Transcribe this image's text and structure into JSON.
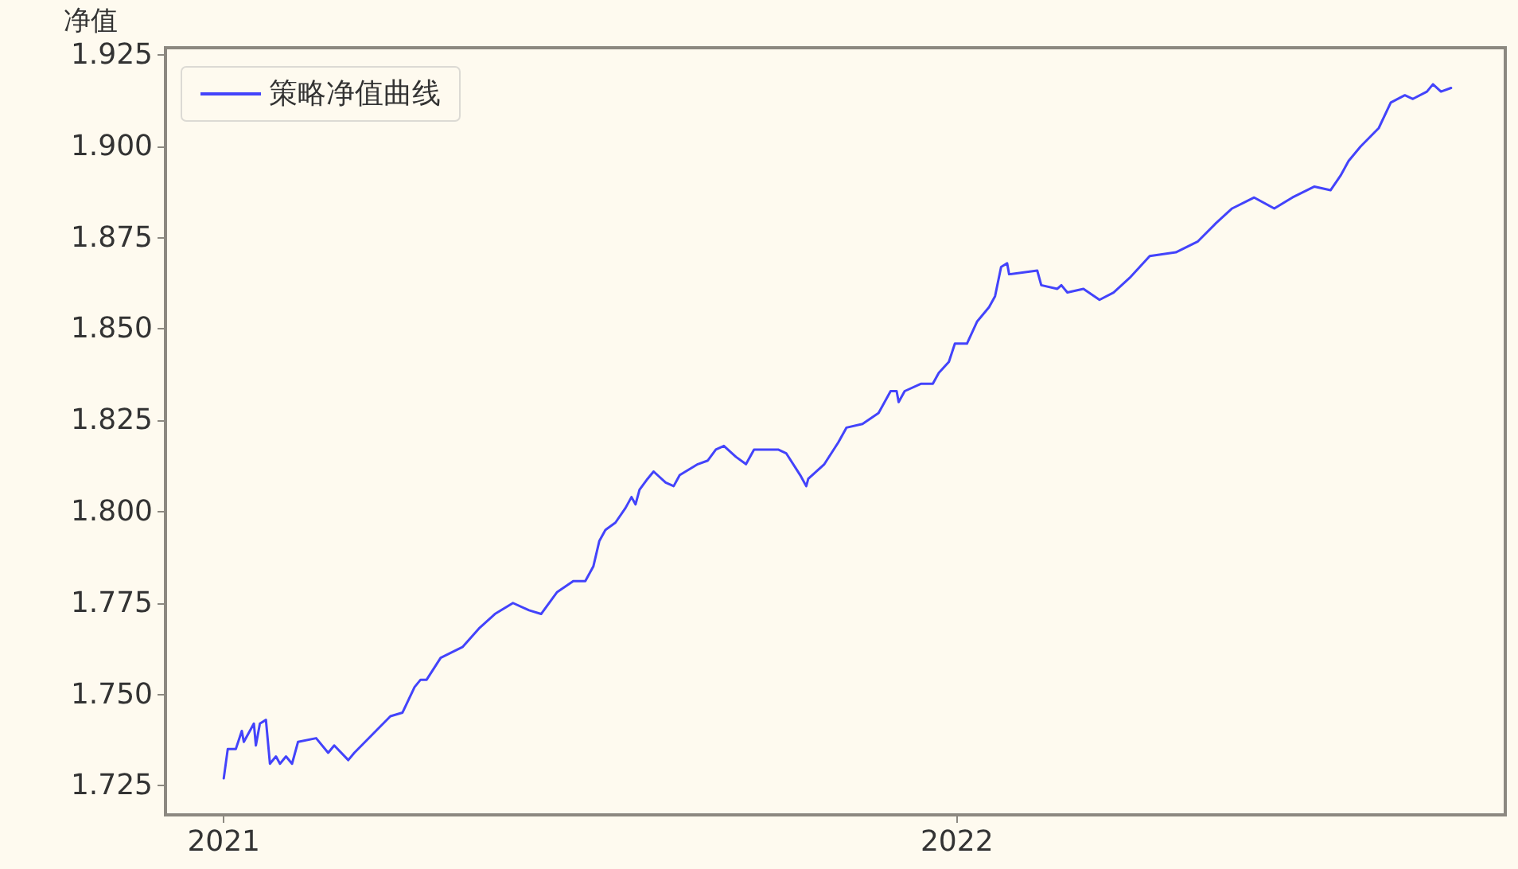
{
  "chart_data": {
    "type": "line",
    "ylabel": "净值",
    "legend": "top left",
    "grid": false,
    "marker": "none",
    "line_style": "solid",
    "xlim": [
      "2020-12-03",
      "2022-10-01"
    ],
    "ylim": [
      1.717,
      1.927
    ],
    "xticks": [
      {
        "value": "2021-01-01",
        "label": "2021"
      },
      {
        "value": "2022-01-01",
        "label": "2022"
      }
    ],
    "yticks": [
      1.725,
      {
        "value": 1.75,
        "label": "1.750"
      },
      1.775,
      {
        "value": 1.8,
        "label": "1.800"
      },
      1.825,
      {
        "value": 1.85,
        "label": "1.850"
      },
      1.875,
      {
        "value": 1.9,
        "label": "1.900"
      },
      1.925
    ],
    "x": [
      "2021-01-01",
      "2021-01-03",
      "2021-01-07",
      "2021-01-10",
      "2021-01-11",
      "2021-01-16",
      "2021-01-17",
      "2021-01-19",
      "2021-01-22",
      "2021-01-24",
      "2021-01-27",
      "2021-01-29",
      "2021-02-01",
      "2021-02-04",
      "2021-02-07",
      "2021-02-16",
      "2021-02-22",
      "2021-02-25",
      "2021-03-04",
      "2021-03-07",
      "2021-03-16",
      "2021-03-25",
      "2021-03-31",
      "2021-04-06",
      "2021-04-09",
      "2021-04-12",
      "2021-04-19",
      "2021-04-30",
      "2021-05-08",
      "2021-05-16",
      "2021-05-25",
      "2021-06-02",
      "2021-06-08",
      "2021-06-16",
      "2021-06-24",
      "2021-06-30",
      "2021-07-04",
      "2021-07-07",
      "2021-07-10",
      "2021-07-15",
      "2021-07-20",
      "2021-07-23",
      "2021-07-25",
      "2021-07-27",
      "2021-07-31",
      "2021-08-03",
      "2021-08-09",
      "2021-08-13",
      "2021-08-16",
      "2021-08-25",
      "2021-08-30",
      "2021-09-03",
      "2021-09-07",
      "2021-09-13",
      "2021-09-18",
      "2021-09-22",
      "2021-10-04",
      "2021-10-08",
      "2021-10-15",
      "2021-10-18",
      "2021-10-19",
      "2021-10-27",
      "2021-11-03",
      "2021-11-07",
      "2021-11-15",
      "2021-11-23",
      "2021-11-29",
      "2021-12-02",
      "2021-12-03",
      "2021-12-06",
      "2021-12-14",
      "2021-12-20",
      "2021-12-23",
      "2021-12-28",
      "2021-12-31",
      "2022-01-06",
      "2022-01-11",
      "2022-01-17",
      "2022-01-20",
      "2022-01-23",
      "2022-01-26",
      "2022-01-27",
      "2022-02-10",
      "2022-02-12",
      "2022-02-20",
      "2022-02-22",
      "2022-02-25",
      "2022-03-05",
      "2022-03-13",
      "2022-03-20",
      "2022-03-28",
      "2022-04-07",
      "2022-04-20",
      "2022-05-01",
      "2022-05-10",
      "2022-05-18",
      "2022-05-29",
      "2022-06-08",
      "2022-06-17",
      "2022-06-28",
      "2022-07-06",
      "2022-07-11",
      "2022-07-15",
      "2022-07-21",
      "2022-07-30",
      "2022-08-05",
      "2022-08-12",
      "2022-08-16",
      "2022-08-23",
      "2022-08-26",
      "2022-08-30",
      "2022-09-04"
    ],
    "series": [
      {
        "name": "策略净值曲线",
        "color": "#4343fb",
        "values": [
          1.727,
          1.735,
          1.735,
          1.74,
          1.737,
          1.742,
          1.736,
          1.742,
          1.743,
          1.731,
          1.733,
          1.731,
          1.733,
          1.731,
          1.737,
          1.738,
          1.734,
          1.736,
          1.732,
          1.734,
          1.739,
          1.744,
          1.745,
          1.752,
          1.754,
          1.754,
          1.76,
          1.763,
          1.768,
          1.772,
          1.775,
          1.773,
          1.772,
          1.778,
          1.781,
          1.781,
          1.785,
          1.792,
          1.795,
          1.797,
          1.801,
          1.804,
          1.802,
          1.806,
          1.809,
          1.811,
          1.808,
          1.807,
          1.81,
          1.813,
          1.814,
          1.817,
          1.818,
          1.815,
          1.813,
          1.817,
          1.817,
          1.816,
          1.81,
          1.807,
          1.809,
          1.813,
          1.819,
          1.823,
          1.824,
          1.827,
          1.833,
          1.833,
          1.83,
          1.833,
          1.835,
          1.835,
          1.838,
          1.841,
          1.846,
          1.846,
          1.852,
          1.856,
          1.859,
          1.867,
          1.868,
          1.865,
          1.866,
          1.862,
          1.861,
          1.862,
          1.86,
          1.861,
          1.858,
          1.86,
          1.864,
          1.87,
          1.871,
          1.874,
          1.879,
          1.883,
          1.886,
          1.883,
          1.886,
          1.889,
          1.888,
          1.892,
          1.896,
          1.9,
          1.905,
          1.912,
          1.914,
          1.913,
          1.915,
          1.917,
          1.915,
          1.916
        ]
      }
    ]
  }
}
